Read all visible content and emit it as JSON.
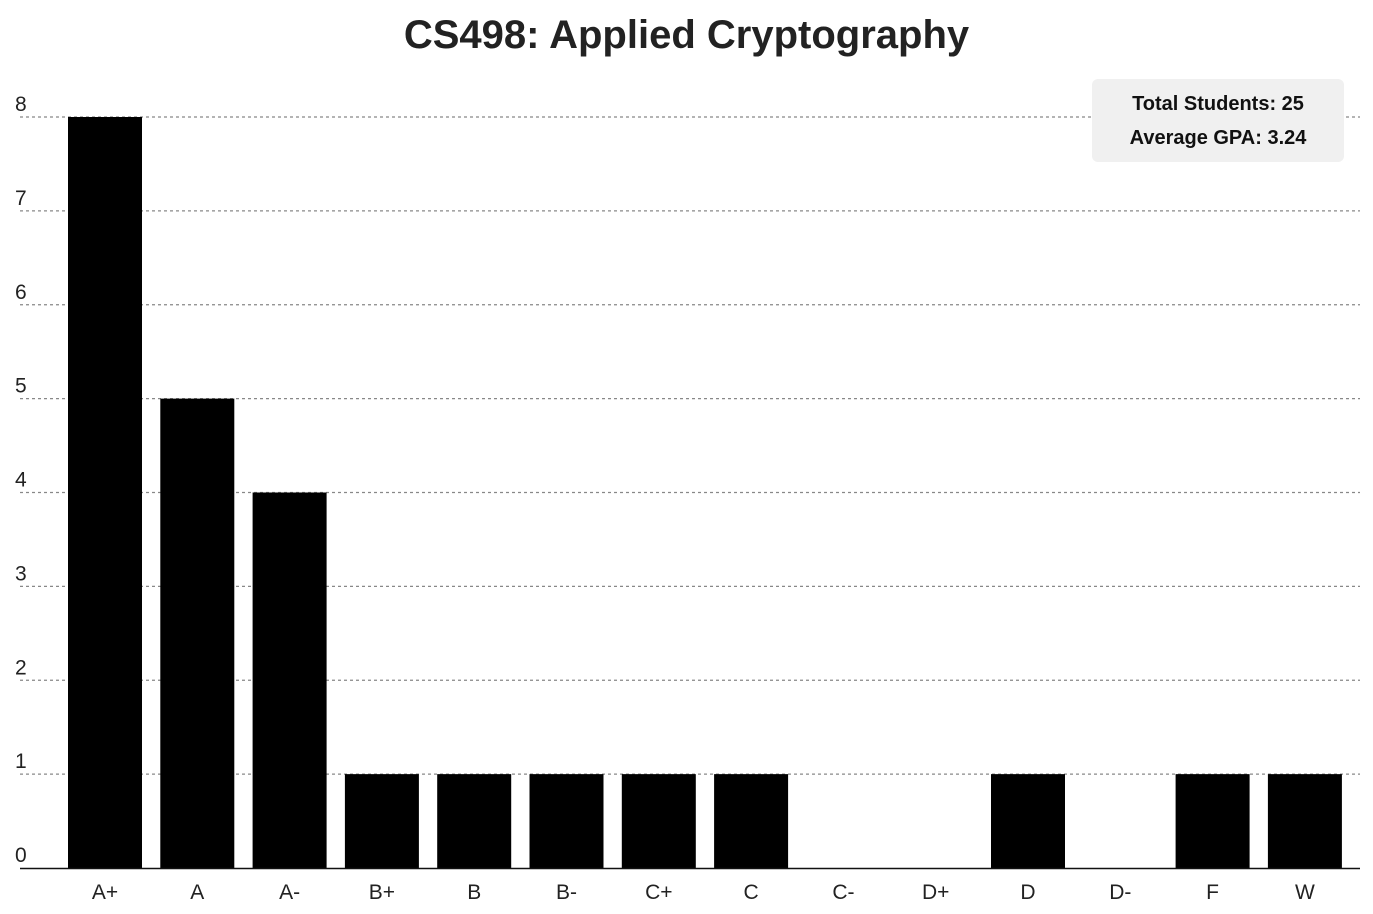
{
  "chart_data": {
    "type": "bar",
    "title": "CS498: Applied Cryptography",
    "xlabel": "",
    "ylabel": "",
    "categories": [
      "A+",
      "A",
      "A-",
      "B+",
      "B",
      "B-",
      "C+",
      "C",
      "C-",
      "D+",
      "D",
      "D-",
      "F",
      "W"
    ],
    "values": [
      8,
      5,
      4,
      1,
      1,
      1,
      1,
      1,
      0,
      0,
      1,
      0,
      1,
      1
    ],
    "ylim": [
      0,
      8
    ],
    "yticks": [
      "0",
      "1",
      "2",
      "3",
      "4",
      "5",
      "6",
      "7",
      "8"
    ],
    "grid": "horizontal dashed",
    "bar_color": "#000000",
    "annotations": {
      "total_students": "Total Students: 25",
      "average_gpa": "Average GPA: 3.24"
    }
  }
}
